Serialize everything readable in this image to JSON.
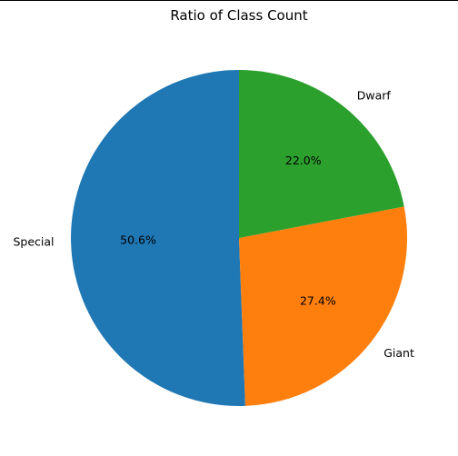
{
  "chart_data": {
    "type": "pie",
    "title": "Ratio of Class Count",
    "slices": [
      {
        "label": "Special",
        "value": 50.6,
        "pct_label": "50.6%",
        "color": "#1f77b4"
      },
      {
        "label": "Giant",
        "value": 27.4,
        "pct_label": "27.4%",
        "color": "#ff7f0e"
      },
      {
        "label": "Dwarf",
        "value": 22.0,
        "pct_label": "22.0%",
        "color": "#2ca02c"
      }
    ],
    "start_angle_deg": 90,
    "direction": "counterclockwise"
  }
}
